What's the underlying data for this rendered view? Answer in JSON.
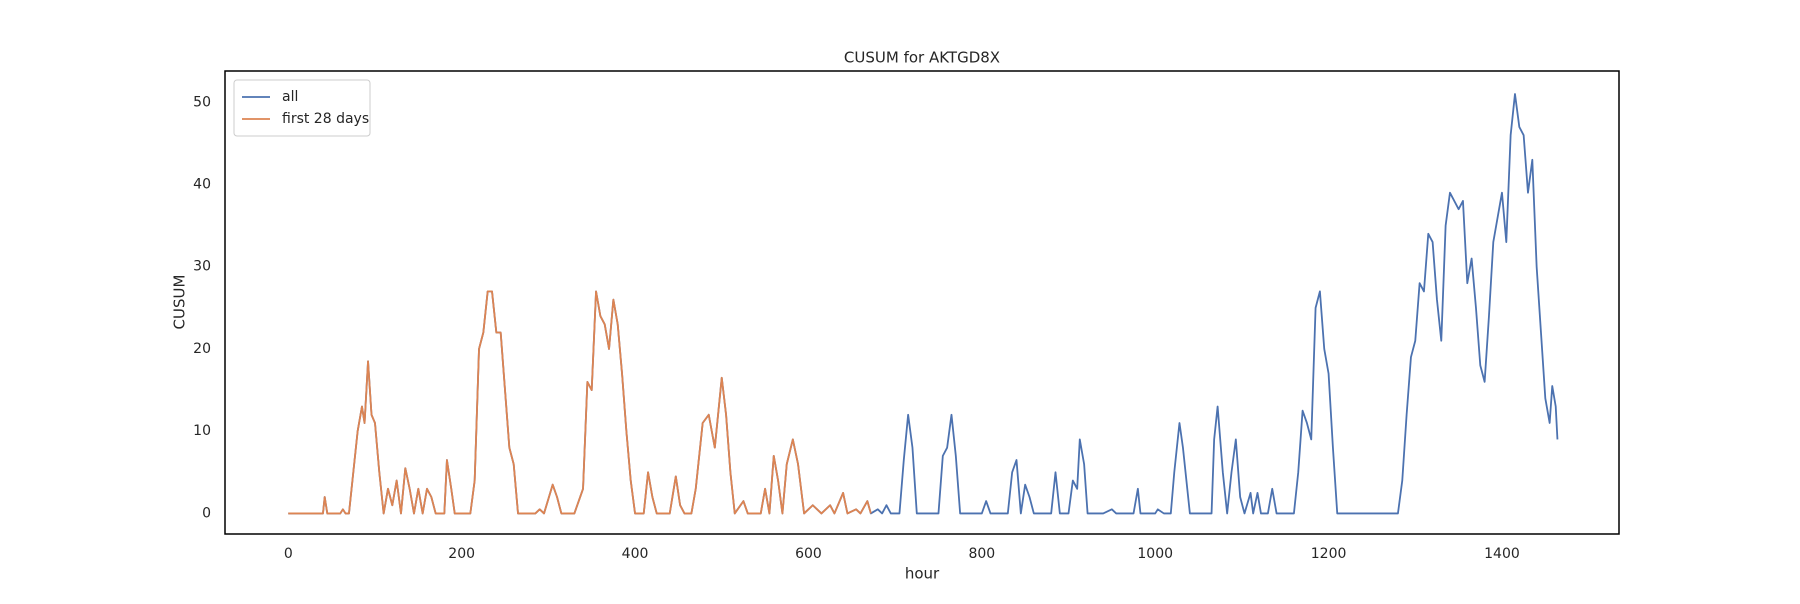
{
  "chart_data": {
    "type": "line",
    "title": "CUSUM for AKTGD8X",
    "xlabel": "hour",
    "ylabel": "CUSUM",
    "x": [
      0,
      40,
      42,
      45,
      60,
      63,
      66,
      70,
      75,
      80,
      85,
      88,
      92,
      96,
      100,
      105,
      110,
      115,
      120,
      125,
      130,
      135,
      140,
      145,
      150,
      155,
      160,
      165,
      170,
      180,
      183,
      188,
      192,
      210,
      215,
      220,
      225,
      230,
      235,
      240,
      245,
      250,
      255,
      260,
      265,
      285,
      290,
      295,
      305,
      310,
      315,
      330,
      340,
      345,
      350,
      355,
      360,
      365,
      370,
      375,
      380,
      385,
      390,
      395,
      400,
      410,
      415,
      420,
      425,
      440,
      447,
      452,
      457,
      465,
      470,
      478,
      485,
      492,
      500,
      505,
      510,
      515,
      525,
      530,
      545,
      550,
      555,
      560,
      565,
      570,
      575,
      582,
      588,
      595,
      605,
      615,
      625,
      630,
      640,
      645,
      655,
      660,
      668,
      672,
      680,
      685,
      690,
      695,
      705,
      710,
      715,
      720,
      725,
      750,
      755,
      760,
      765,
      770,
      775,
      800,
      805,
      810,
      830,
      835,
      840,
      845,
      850,
      855,
      860,
      880,
      885,
      890,
      900,
      905,
      910,
      913,
      918,
      922,
      940,
      950,
      955,
      975,
      980,
      983,
      1000,
      1003,
      1010,
      1018,
      1022,
      1028,
      1032,
      1040,
      1065,
      1068,
      1072,
      1078,
      1083,
      1088,
      1093,
      1098,
      1103,
      1110,
      1113,
      1118,
      1122,
      1130,
      1135,
      1140,
      1160,
      1165,
      1170,
      1175,
      1180,
      1185,
      1190,
      1195,
      1200,
      1205,
      1210,
      1280,
      1285,
      1290,
      1295,
      1300,
      1305,
      1310,
      1315,
      1320,
      1325,
      1330,
      1335,
      1340,
      1345,
      1350,
      1355,
      1360,
      1365,
      1370,
      1375,
      1380,
      1385,
      1390,
      1395,
      1400,
      1405,
      1410,
      1415,
      1420,
      1425,
      1430,
      1435,
      1440,
      1445,
      1450,
      1455,
      1458,
      1462,
      1464
    ],
    "series": [
      {
        "name": "all",
        "color": "#4c72b0",
        "values": [
          0,
          0,
          2,
          0,
          0,
          0.5,
          0,
          0,
          5,
          10,
          13,
          11,
          18.5,
          12,
          11,
          5,
          0,
          3,
          1,
          4,
          0,
          5.5,
          3,
          0,
          3,
          0,
          3,
          2,
          0,
          0,
          6.5,
          3,
          0,
          0,
          4,
          20,
          22,
          27,
          27,
          22,
          22,
          15,
          8,
          6,
          0,
          0,
          0.5,
          0,
          3.5,
          2,
          0,
          0,
          3,
          16,
          15,
          27,
          24,
          23,
          20,
          26,
          23,
          17,
          10,
          4,
          0,
          0,
          5,
          2,
          0,
          0,
          4.5,
          1,
          0,
          0,
          3,
          11,
          12,
          8,
          16.5,
          12,
          5,
          0,
          1.5,
          0,
          0,
          3,
          0,
          7,
          4,
          0,
          6,
          9,
          6,
          0,
          1,
          0,
          1,
          0,
          2.5,
          0,
          0.5,
          0,
          1.5,
          0,
          0.5,
          0,
          1,
          0,
          0,
          6.5,
          12,
          8,
          0,
          0,
          7,
          8,
          12,
          7,
          0,
          0,
          1.5,
          0,
          0,
          5,
          6.5,
          0,
          3.5,
          2,
          0,
          0,
          5,
          0,
          0,
          4,
          3,
          9,
          6,
          0,
          0,
          0.5,
          0,
          0,
          3,
          0,
          0,
          0.5,
          0,
          0,
          5,
          11,
          8,
          0,
          0,
          9,
          13,
          5,
          0,
          5,
          9,
          2,
          0,
          2.5,
          0,
          2.5,
          0,
          0,
          3,
          0,
          0,
          5,
          12.5,
          11,
          9,
          25,
          27,
          20,
          17,
          8,
          0,
          0,
          4,
          12,
          19,
          21,
          28,
          27,
          34,
          33,
          26,
          21,
          35,
          39,
          38,
          37,
          38,
          28,
          31,
          25,
          18,
          16,
          24,
          33,
          36,
          39,
          33,
          46,
          51,
          47,
          46,
          39,
          43,
          30,
          22,
          14,
          11,
          15.5,
          13,
          9
        ]
      },
      {
        "name": "first 28 days",
        "color": "#dd8452",
        "values": [
          0,
          0,
          2,
          0,
          0,
          0.5,
          0,
          0,
          5,
          10,
          13,
          11,
          18.5,
          12,
          11,
          5,
          0,
          3,
          1,
          4,
          0,
          5.5,
          3,
          0,
          3,
          0,
          3,
          2,
          0,
          0,
          6.5,
          3,
          0,
          0,
          4,
          20,
          22,
          27,
          27,
          22,
          22,
          15,
          8,
          6,
          0,
          0,
          0.5,
          0,
          3.5,
          2,
          0,
          0,
          3,
          16,
          15,
          27,
          24,
          23,
          20,
          26,
          23,
          17,
          10,
          4,
          0,
          0,
          5,
          2,
          0,
          0,
          4.5,
          1,
          0,
          0,
          3,
          11,
          12,
          8,
          16.5,
          12,
          5,
          0,
          1.5,
          0,
          0,
          3,
          0,
          7,
          4,
          0,
          6,
          9,
          6,
          0,
          1,
          0,
          1,
          0,
          2.5,
          0,
          0.5,
          0,
          1.5,
          0,
          null,
          null,
          null,
          null,
          null,
          null,
          null,
          null,
          null,
          null,
          null,
          null,
          null,
          null,
          null,
          null,
          null,
          null,
          null,
          null,
          null,
          null,
          null,
          null,
          null,
          null,
          null,
          null,
          null,
          null,
          null,
          null,
          null,
          null,
          null,
          null,
          null,
          null,
          null,
          null,
          null,
          null,
          null,
          null,
          null,
          null,
          null,
          null,
          null,
          null,
          null,
          null,
          null,
          null,
          null,
          null,
          null,
          null,
          null,
          null,
          null,
          null,
          null,
          null,
          null,
          null,
          null,
          null,
          null,
          null,
          null,
          null,
          null,
          null,
          null,
          null,
          null,
          null,
          null,
          null,
          null,
          null,
          null,
          null,
          null,
          null,
          null,
          null,
          null,
          null,
          null,
          null,
          null,
          null,
          null,
          null,
          null,
          null,
          null,
          null,
          null,
          null,
          null,
          null,
          null,
          null,
          null,
          null,
          null,
          null,
          null,
          null,
          null,
          null
        ]
      }
    ],
    "xlim": [
      -73,
      1535
    ],
    "xticks": [
      0,
      200,
      400,
      600,
      800,
      1000,
      1200,
      1400
    ],
    "ylim": [
      -2.5,
      53.8
    ],
    "yticks": [
      0,
      10,
      20,
      30,
      40,
      50
    ],
    "grid": false,
    "legend": "upper left"
  }
}
